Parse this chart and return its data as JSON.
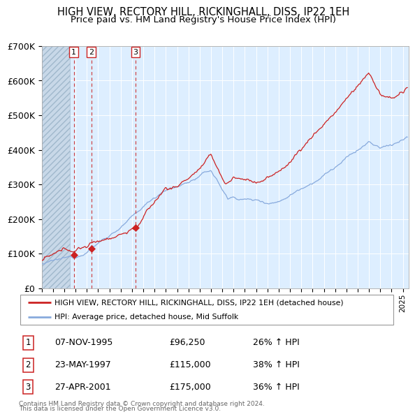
{
  "title": "HIGH VIEW, RECTORY HILL, RICKINGHALL, DISS, IP22 1EH",
  "subtitle": "Price paid vs. HM Land Registry's House Price Index (HPI)",
  "ylim": [
    0,
    700000
  ],
  "yticks": [
    0,
    100000,
    200000,
    300000,
    400000,
    500000,
    600000,
    700000
  ],
  "ytick_labels": [
    "£0",
    "£100K",
    "£200K",
    "£300K",
    "£400K",
    "£500K",
    "£600K",
    "£700K"
  ],
  "xlim_start": 1993.0,
  "xlim_end": 2025.5,
  "hatch_end": 1995.5,
  "transactions": [
    {
      "num": 1,
      "date": "07-NOV-1995",
      "year": 1995.85,
      "price": 96250,
      "pct": "26%",
      "dir": "↑"
    },
    {
      "num": 2,
      "date": "23-MAY-1997",
      "year": 1997.39,
      "price": 115000,
      "pct": "38%",
      "dir": "↑"
    },
    {
      "num": 3,
      "date": "27-APR-2001",
      "year": 2001.32,
      "price": 175000,
      "pct": "36%",
      "dir": "↑"
    }
  ],
  "legend_line1": "HIGH VIEW, RECTORY HILL, RICKINGHALL, DISS, IP22 1EH (detached house)",
  "legend_line2": "HPI: Average price, detached house, Mid Suffolk",
  "footer1": "Contains HM Land Registry data © Crown copyright and database right 2024.",
  "footer2": "This data is licensed under the Open Government Licence v3.0.",
  "red_color": "#cc2222",
  "blue_color": "#88aadd",
  "bg_color": "#ddeeff",
  "hatch_bg": "#c8d8e8",
  "title_fontsize": 10.5,
  "subtitle_fontsize": 9.5,
  "ylabel_fontsize": 9,
  "xlabel_fontsize": 7.5
}
